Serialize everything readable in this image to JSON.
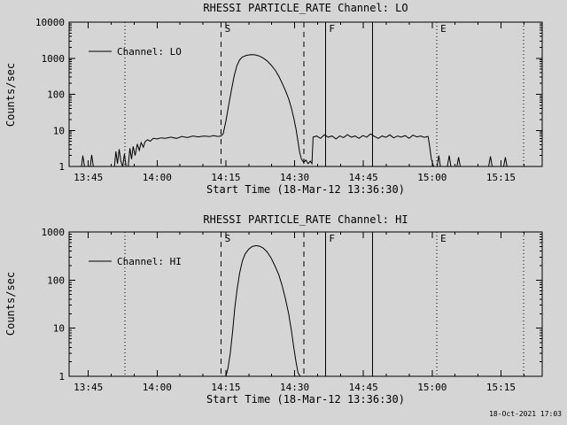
{
  "window": {
    "background": "#d5d5d5",
    "foreground": "#000000"
  },
  "footer": {
    "generated": "18-Oct-2021 17:03"
  },
  "events": [
    {
      "style": "dotted",
      "hours": 13.883,
      "label": ""
    },
    {
      "style": "dashed",
      "hours": 14.233,
      "label": "S"
    },
    {
      "style": "dashed",
      "hours": 14.533,
      "label": ""
    },
    {
      "style": "solid",
      "hours": 14.612,
      "label": "F"
    },
    {
      "style": "solid",
      "hours": 14.783,
      "label": ""
    },
    {
      "style": "dotted",
      "hours": 15.017,
      "label": "E"
    },
    {
      "style": "dotted",
      "hours": 15.333,
      "label": ""
    }
  ],
  "chart_data": [
    {
      "type": "line",
      "title": "RHESSI PARTICLE_RATE Channel: LO",
      "xlabel": "Start Time (18-Mar-12 13:36:30)",
      "ylabel": "Counts/sec",
      "legend": "Channel: LO",
      "legend_position": "upper-left",
      "grid": false,
      "yscale": "log",
      "ylim": [
        1,
        10000
      ],
      "xlim_hours": [
        13.68,
        15.4
      ],
      "xticks": [
        {
          "h": 13.75,
          "label": "13:45"
        },
        {
          "h": 14.0,
          "label": "14:00"
        },
        {
          "h": 14.25,
          "label": "14:15"
        },
        {
          "h": 14.5,
          "label": "14:30"
        },
        {
          "h": 14.75,
          "label": "14:45"
        },
        {
          "h": 15.0,
          "label": "15:00"
        },
        {
          "h": 15.25,
          "label": "15:15"
        }
      ],
      "yticks": [
        {
          "v": 1,
          "label": "1"
        },
        {
          "v": 10,
          "label": "10"
        },
        {
          "v": 100,
          "label": "100"
        },
        {
          "v": 1000,
          "label": "1000"
        },
        {
          "v": 10000,
          "label": "10000"
        }
      ],
      "series": [
        {
          "name": "Channel: LO",
          "points": [
            [
              13.683,
              1
            ],
            [
              13.725,
              1
            ],
            [
              13.73,
              2
            ],
            [
              13.736,
              1
            ],
            [
              13.757,
              1
            ],
            [
              13.762,
              2.1
            ],
            [
              13.768,
              1
            ],
            [
              13.8,
              1
            ],
            [
              13.845,
              1
            ],
            [
              13.85,
              2.6
            ],
            [
              13.856,
              1.2
            ],
            [
              13.862,
              3
            ],
            [
              13.868,
              1.4
            ],
            [
              13.875,
              1
            ],
            [
              13.881,
              2.2
            ],
            [
              13.887,
              1
            ],
            [
              13.895,
              1
            ],
            [
              13.901,
              3.2
            ],
            [
              13.907,
              1.6
            ],
            [
              13.913,
              3.6
            ],
            [
              13.92,
              2
            ],
            [
              13.928,
              4.2
            ],
            [
              13.935,
              2.8
            ],
            [
              13.942,
              4.6
            ],
            [
              13.95,
              3.4
            ],
            [
              13.956,
              4.8
            ],
            [
              13.965,
              5.5
            ],
            [
              13.975,
              5
            ],
            [
              13.986,
              6
            ],
            [
              14.0,
              5.8
            ],
            [
              14.015,
              6.2
            ],
            [
              14.03,
              6
            ],
            [
              14.05,
              6.5
            ],
            [
              14.07,
              6
            ],
            [
              14.09,
              6.8
            ],
            [
              14.11,
              6.3
            ],
            [
              14.13,
              7
            ],
            [
              14.15,
              6.6
            ],
            [
              14.17,
              7
            ],
            [
              14.19,
              6.7
            ],
            [
              14.205,
              7.2
            ],
            [
              14.22,
              6.8
            ],
            [
              14.232,
              7
            ],
            [
              14.24,
              8
            ],
            [
              14.25,
              18
            ],
            [
              14.26,
              50
            ],
            [
              14.27,
              130
            ],
            [
              14.28,
              320
            ],
            [
              14.29,
              620
            ],
            [
              14.3,
              900
            ],
            [
              14.31,
              1080
            ],
            [
              14.325,
              1200
            ],
            [
              14.34,
              1260
            ],
            [
              14.355,
              1240
            ],
            [
              14.37,
              1160
            ],
            [
              14.385,
              1020
            ],
            [
              14.4,
              840
            ],
            [
              14.415,
              640
            ],
            [
              14.43,
              460
            ],
            [
              14.443,
              310
            ],
            [
              14.455,
              200
            ],
            [
              14.467,
              125
            ],
            [
              14.478,
              75
            ],
            [
              14.488,
              42
            ],
            [
              14.497,
              22
            ],
            [
              14.505,
              11
            ],
            [
              14.512,
              5
            ],
            [
              14.518,
              2.5
            ],
            [
              14.525,
              1.6
            ],
            [
              14.533,
              1.3
            ],
            [
              14.541,
              1.5
            ],
            [
              14.549,
              1.2
            ],
            [
              14.557,
              1.4
            ],
            [
              14.563,
              1.2
            ],
            [
              14.567,
              6.5
            ],
            [
              14.58,
              7
            ],
            [
              14.594,
              6
            ],
            [
              14.608,
              7.5
            ],
            [
              14.622,
              6.5
            ],
            [
              14.636,
              7
            ],
            [
              14.65,
              5.8
            ],
            [
              14.664,
              7
            ],
            [
              14.678,
              6.3
            ],
            [
              14.692,
              7.6
            ],
            [
              14.706,
              6.5
            ],
            [
              14.72,
              7
            ],
            [
              14.734,
              6
            ],
            [
              14.748,
              7.2
            ],
            [
              14.762,
              6.5
            ],
            [
              14.776,
              8
            ],
            [
              14.79,
              6.8
            ],
            [
              14.804,
              6
            ],
            [
              14.818,
              7
            ],
            [
              14.832,
              6.4
            ],
            [
              14.846,
              7.5
            ],
            [
              14.86,
              6.2
            ],
            [
              14.874,
              7
            ],
            [
              14.888,
              6.5
            ],
            [
              14.902,
              7.2
            ],
            [
              14.916,
              6
            ],
            [
              14.93,
              7.4
            ],
            [
              14.944,
              6.6
            ],
            [
              14.958,
              7
            ],
            [
              14.972,
              6.4
            ],
            [
              14.985,
              6.8
            ],
            [
              14.99,
              4
            ],
            [
              14.997,
              1.6
            ],
            [
              15.005,
              1
            ],
            [
              15.018,
              1
            ],
            [
              15.024,
              2
            ],
            [
              15.03,
              1
            ],
            [
              15.055,
              1
            ],
            [
              15.062,
              2
            ],
            [
              15.068,
              1
            ],
            [
              15.09,
              1
            ],
            [
              15.096,
              1.8
            ],
            [
              15.102,
              1
            ],
            [
              15.15,
              1
            ],
            [
              15.205,
              1
            ],
            [
              15.212,
              1.9
            ],
            [
              15.218,
              1
            ],
            [
              15.26,
              1
            ],
            [
              15.266,
              1.8
            ],
            [
              15.272,
              1
            ],
            [
              15.3,
              1
            ],
            [
              15.39,
              1
            ]
          ]
        }
      ]
    },
    {
      "type": "line",
      "title": "RHESSI PARTICLE_RATE Channel: HI",
      "xlabel": "Start Time (18-Mar-12 13:36:30)",
      "ylabel": "Counts/sec",
      "legend": "Channel: HI",
      "legend_position": "upper-left",
      "grid": false,
      "yscale": "log",
      "ylim": [
        1,
        1000
      ],
      "xlim_hours": [
        13.68,
        15.4
      ],
      "xticks": [
        {
          "h": 13.75,
          "label": "13:45"
        },
        {
          "h": 14.0,
          "label": "14:00"
        },
        {
          "h": 14.25,
          "label": "14:15"
        },
        {
          "h": 14.5,
          "label": "14:30"
        },
        {
          "h": 14.75,
          "label": "14:45"
        },
        {
          "h": 15.0,
          "label": "15:00"
        },
        {
          "h": 15.25,
          "label": "15:15"
        }
      ],
      "yticks": [
        {
          "v": 1,
          "label": "1"
        },
        {
          "v": 10,
          "label": "10"
        },
        {
          "v": 100,
          "label": "100"
        },
        {
          "v": 1000,
          "label": "1000"
        }
      ],
      "series": [
        {
          "name": "Channel: HI",
          "points": [
            [
              13.683,
              0.9
            ],
            [
              14.25,
              0.9
            ],
            [
              14.258,
              1.5
            ],
            [
              14.266,
              3
            ],
            [
              14.274,
              8
            ],
            [
              14.282,
              25
            ],
            [
              14.29,
              60
            ],
            [
              14.3,
              140
            ],
            [
              14.31,
              250
            ],
            [
              14.32,
              350
            ],
            [
              14.333,
              440
            ],
            [
              14.346,
              500
            ],
            [
              14.36,
              520
            ],
            [
              14.373,
              505
            ],
            [
              14.386,
              460
            ],
            [
              14.4,
              385
            ],
            [
              14.414,
              290
            ],
            [
              14.428,
              200
            ],
            [
              14.442,
              130
            ],
            [
              14.455,
              75
            ],
            [
              14.467,
              40
            ],
            [
              14.478,
              20
            ],
            [
              14.488,
              9
            ],
            [
              14.497,
              4
            ],
            [
              14.505,
              2
            ],
            [
              14.512,
              1.2
            ],
            [
              14.52,
              0.9
            ],
            [
              15.39,
              0.9
            ]
          ]
        }
      ]
    }
  ]
}
